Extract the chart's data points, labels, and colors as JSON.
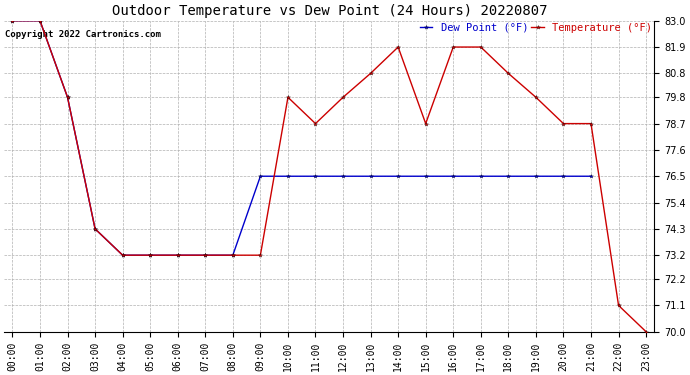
{
  "title": "Outdoor Temperature vs Dew Point (24 Hours) 20220807",
  "copyright_text": "Copyright 2022 Cartronics.com",
  "legend_dew": "Dew Point (°F)",
  "legend_temp": "Temperature (°F)",
  "background_color": "#ffffff",
  "plot_bg_color": "#ffffff",
  "grid_color": "#b0b0b0",
  "ylim": [
    70.0,
    83.0
  ],
  "yticks": [
    70.0,
    71.1,
    72.2,
    73.2,
    74.3,
    75.4,
    76.5,
    77.6,
    78.7,
    79.8,
    80.8,
    81.9,
    83.0
  ],
  "hours": [
    0,
    1,
    2,
    3,
    4,
    5,
    6,
    7,
    8,
    9,
    10,
    11,
    12,
    13,
    14,
    15,
    16,
    17,
    18,
    19,
    20,
    21,
    22,
    23
  ],
  "temp_data": [
    83.0,
    83.0,
    79.8,
    74.3,
    73.2,
    73.2,
    73.2,
    73.2,
    73.2,
    73.2,
    79.8,
    78.7,
    79.8,
    80.8,
    81.9,
    78.7,
    81.9,
    81.9,
    80.8,
    79.8,
    78.7,
    78.7,
    71.1,
    70.0
  ],
  "dew_data": [
    83.0,
    83.0,
    79.8,
    74.3,
    73.2,
    73.2,
    73.2,
    73.2,
    73.2,
    76.5,
    76.5,
    76.5,
    76.5,
    76.5,
    76.5,
    76.5,
    76.5,
    76.5,
    76.5,
    76.5,
    76.5,
    76.5,
    null,
    null
  ],
  "temp_color": "#cc0000",
  "dew_color": "#0000cc",
  "marker": "*",
  "marker_size": 3,
  "line_width": 1.0,
  "title_fontsize": 10,
  "axis_fontsize": 7,
  "legend_fontsize": 7.5,
  "copyright_fontsize": 6.5
}
